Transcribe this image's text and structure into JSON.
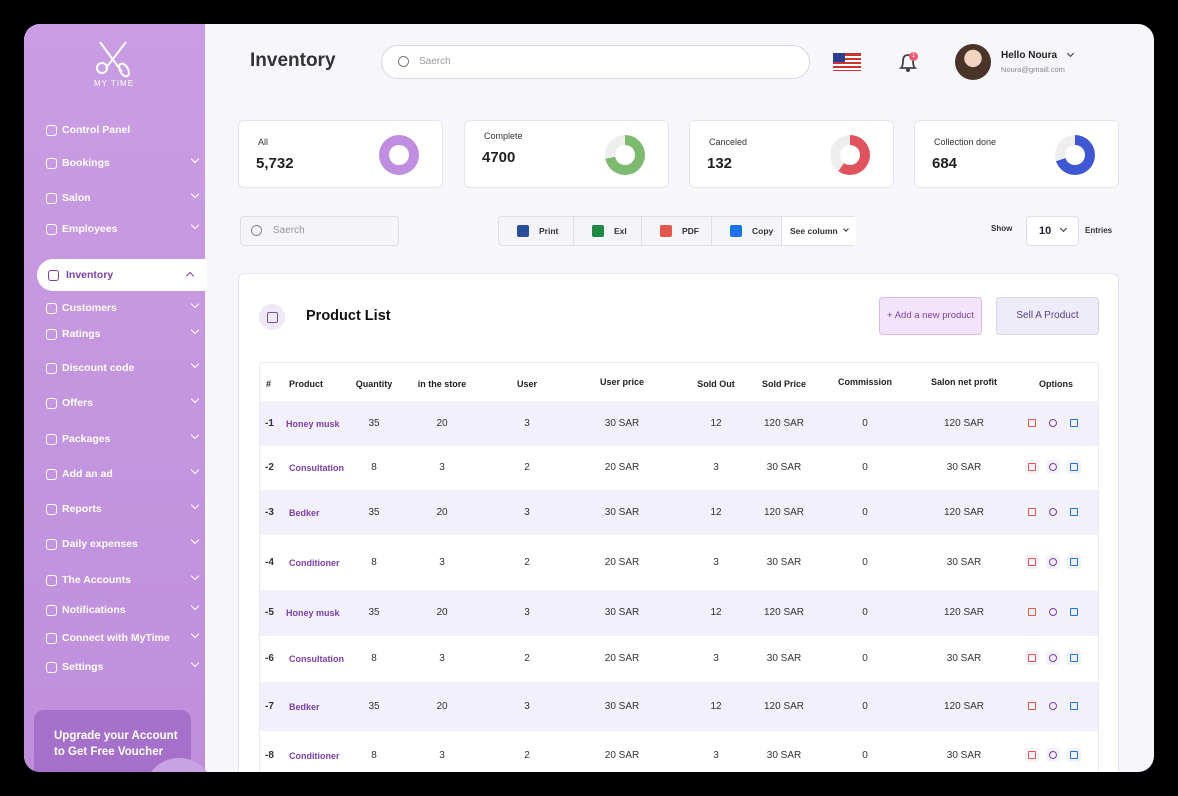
{
  "brand": "MY TIME",
  "sidebar": {
    "menu": [
      "Control Panel",
      "Bookings",
      "Salon",
      "Employees",
      "Inventory",
      "Customers",
      "Ratings",
      "Discount code",
      "Offers",
      "Packages",
      "Add an ad",
      "Reports",
      "Daily expenses",
      "The Accounts",
      "Notifications",
      "Connect with MyTime",
      "Settings"
    ],
    "upgrade": "Upgrade your Account to Get Free Voucher"
  },
  "header": {
    "title": "Inventory",
    "search_placeholder": "Saerch",
    "notification_count": "1",
    "greeting": "Hello Noura",
    "email": "Noura@gmaill.com"
  },
  "stats": [
    {
      "label": "All",
      "value": "5,732"
    },
    {
      "label": "Complete",
      "value": "4700"
    },
    {
      "label": "Canceled",
      "value": "132"
    },
    {
      "label": "Collection done",
      "value": "684"
    }
  ],
  "toolbar": {
    "search_placeholder": "Saerch",
    "buttons": [
      "Print",
      "Exl",
      "PDF",
      "Copy",
      "See column"
    ],
    "show": "Show",
    "entries_value": "10",
    "entries": "Entries"
  },
  "panel": {
    "title": "Product List",
    "add_button": "+ Add a new product",
    "sell_button": "Sell A Product"
  },
  "table": {
    "columns": [
      "#",
      "Product",
      "Quantity",
      "in the store",
      "User",
      "User price",
      "Sold Out",
      "Sold Price",
      "Commission",
      "Salon net profit",
      "Options"
    ],
    "rows": [
      [
        "-1",
        "Honey musk",
        "35",
        "20",
        "3",
        "30 SAR",
        "12",
        "120 SAR",
        "0",
        "120 SAR"
      ],
      [
        "-2",
        "Consultation",
        "8",
        "3",
        "2",
        "20 SAR",
        "3",
        "30 SAR",
        "0",
        "30 SAR"
      ],
      [
        "-3",
        "Bedker",
        "35",
        "20",
        "3",
        "30 SAR",
        "12",
        "120 SAR",
        "0",
        "120 SAR"
      ],
      [
        "-4",
        "Conditioner",
        "8",
        "3",
        "2",
        "20 SAR",
        "3",
        "30 SAR",
        "0",
        "30 SAR"
      ],
      [
        "-5",
        "Honey musk",
        "35",
        "20",
        "3",
        "30 SAR",
        "12",
        "120 SAR",
        "0",
        "120 SAR"
      ],
      [
        "-6",
        "Consultation",
        "8",
        "3",
        "2",
        "20 SAR",
        "3",
        "30 SAR",
        "0",
        "30 SAR"
      ],
      [
        "-7",
        "Bedker",
        "35",
        "20",
        "3",
        "30 SAR",
        "12",
        "120 SAR",
        "0",
        "120 SAR"
      ],
      [
        "-8",
        "Conditioner",
        "8",
        "3",
        "2",
        "20 SAR",
        "3",
        "30 SAR",
        "0",
        "30 SAR"
      ]
    ]
  }
}
